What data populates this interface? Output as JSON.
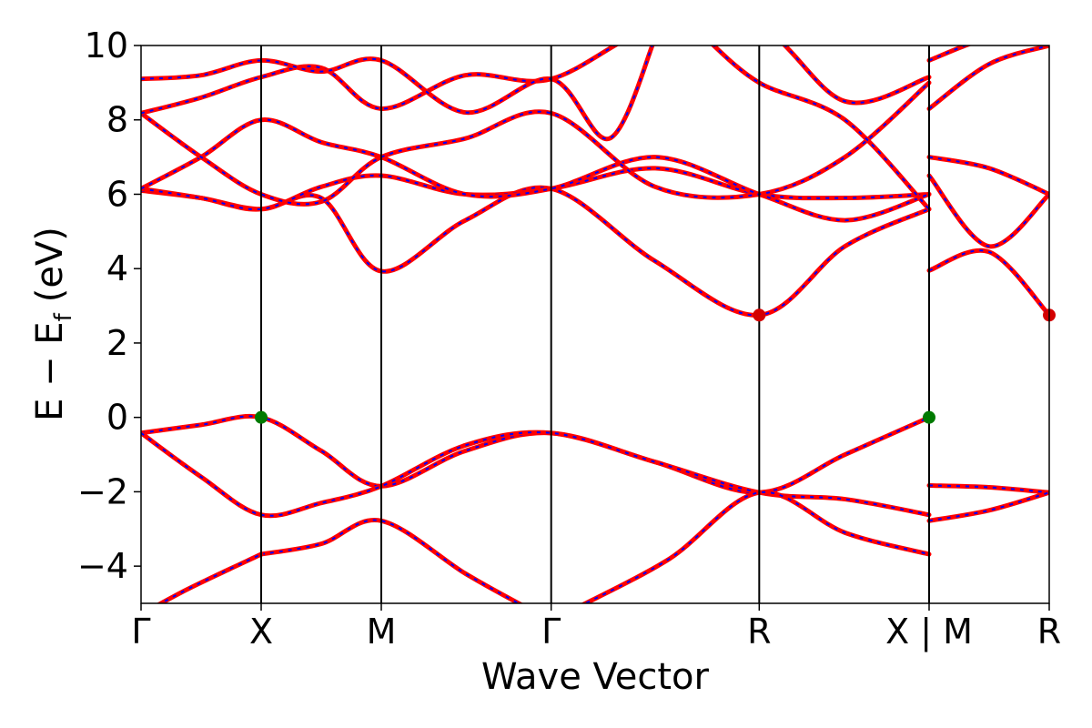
{
  "chart_data": {
    "type": "line",
    "xlabel": "Wave Vector",
    "ylabel": "E − E",
    "ylabel_sub": "f",
    "ylabel_unit": "(eV)",
    "ylim": [
      -5,
      10
    ],
    "yticks": [
      -4,
      -2,
      0,
      2,
      4,
      6,
      8,
      10
    ],
    "ytick_labels": [
      "−4",
      "−2",
      "0",
      "2",
      "4",
      "6",
      "8",
      "10"
    ],
    "kpoints": [
      {
        "label": "Γ",
        "x": 0.0
      },
      {
        "label": "X",
        "x": 0.5
      },
      {
        "label": "M",
        "x": 1.0
      },
      {
        "label": "Γ",
        "x": 1.7071
      },
      {
        "label": "R",
        "x": 2.5731
      },
      {
        "label": "X | M",
        "x": 3.2802
      },
      {
        "label": "R",
        "x": 3.7802
      }
    ],
    "xlim": [
      0,
      3.7802
    ],
    "colors": {
      "band_solid": "#ff0000",
      "band_dash": "#0000ff",
      "vbm": "#007a00",
      "cbm": "#d40000",
      "vline": "#000000"
    },
    "series": [
      {
        "segments": [
          [
            [
              0,
              -0.42
            ],
            [
              0.25,
              -0.2
            ],
            [
              0.5,
              0.0
            ],
            [
              0.75,
              -0.9
            ],
            [
              1.0,
              -1.85
            ],
            [
              1.35,
              -0.9
            ],
            [
              1.7071,
              -0.42
            ],
            [
              2.14,
              -1.2
            ],
            [
              2.5731,
              -2.02
            ],
            [
              2.93,
              -1.0
            ],
            [
              3.2802,
              0.0
            ]
          ],
          [
            [
              3.2802,
              -1.83
            ],
            [
              3.53,
              -1.88
            ],
            [
              3.7802,
              -2.02
            ]
          ]
        ]
      },
      {
        "segments": [
          [
            [
              0,
              -0.42
            ],
            [
              0.25,
              -1.6
            ],
            [
              0.5,
              -2.62
            ],
            [
              0.75,
              -2.3
            ],
            [
              1.0,
              -1.85
            ],
            [
              1.35,
              -0.75
            ],
            [
              1.7071,
              -0.42
            ],
            [
              2.14,
              -1.2
            ],
            [
              2.5731,
              -2.02
            ],
            [
              2.93,
              -2.2
            ],
            [
              3.2802,
              -2.62
            ]
          ],
          [
            [
              3.2802,
              -2.78
            ],
            [
              3.53,
              -2.5
            ],
            [
              3.7802,
              -2.02
            ]
          ]
        ]
      },
      {
        "segments": [
          [
            [
              0.5,
              -3.68
            ],
            [
              0.75,
              -3.4
            ],
            [
              1.0,
              -2.78
            ],
            [
              1.35,
              -4.2
            ],
            [
              1.6,
              -5.1
            ]
          ],
          [
            [
              1.82,
              -5.1
            ],
            [
              2.2,
              -3.8
            ],
            [
              2.5731,
              -2.02
            ],
            [
              2.93,
              -3.1
            ],
            [
              3.2802,
              -3.68
            ]
          ]
        ]
      },
      {
        "segments": [
          [
            [
              0,
              -5.3
            ],
            [
              0.2,
              -4.6
            ],
            [
              0.5,
              -3.68
            ]
          ]
        ]
      },
      {
        "segments": [
          [
            [
              0,
              6.1
            ],
            [
              0.25,
              5.9
            ],
            [
              0.5,
              5.6
            ],
            [
              0.75,
              5.9
            ],
            [
              1.0,
              3.93
            ],
            [
              1.35,
              5.3
            ],
            [
              1.7071,
              6.15
            ],
            [
              2.14,
              4.2
            ],
            [
              2.5731,
              2.75
            ],
            [
              2.93,
              4.6
            ],
            [
              3.2802,
              5.6
            ]
          ],
          [
            [
              3.2802,
              3.95
            ],
            [
              3.53,
              4.45
            ],
            [
              3.7802,
              2.75
            ]
          ]
        ]
      },
      {
        "segments": [
          [
            [
              0,
              6.15
            ],
            [
              0.25,
              5.9
            ],
            [
              0.5,
              5.6
            ],
            [
              0.75,
              6.2
            ],
            [
              1.0,
              6.5
            ],
            [
              1.35,
              6.0
            ],
            [
              1.7071,
              6.15
            ],
            [
              2.14,
              6.7
            ],
            [
              2.5731,
              6.0
            ],
            [
              2.93,
              5.9
            ],
            [
              3.2802,
              6.0
            ]
          ],
          [
            [
              3.2802,
              6.5
            ],
            [
              3.53,
              4.6
            ],
            [
              3.7802,
              6.0
            ]
          ]
        ]
      },
      {
        "segments": [
          [
            [
              0,
              6.15
            ],
            [
              0.25,
              7.0
            ],
            [
              0.5,
              8.0
            ],
            [
              0.75,
              7.4
            ],
            [
              1.0,
              7.0
            ],
            [
              1.35,
              6.0
            ],
            [
              1.7071,
              6.15
            ],
            [
              2.14,
              7.0
            ],
            [
              2.5731,
              6.0
            ],
            [
              2.93,
              5.3
            ],
            [
              3.2802,
              6.0
            ]
          ],
          [
            [
              3.2802,
              7.0
            ],
            [
              3.53,
              6.7
            ],
            [
              3.7802,
              6.0
            ]
          ]
        ]
      },
      {
        "segments": [
          [
            [
              0,
              8.18
            ],
            [
              0.25,
              7.0
            ],
            [
              0.5,
              6.0
            ],
            [
              0.75,
              5.8
            ],
            [
              1.0,
              7.0
            ],
            [
              1.35,
              7.5
            ],
            [
              1.7071,
              8.18
            ],
            [
              2.14,
              6.2
            ],
            [
              2.5731,
              6.0
            ],
            [
              2.93,
              7.0
            ],
            [
              3.2802,
              9.0
            ]
          ],
          [
            [
              3.2802,
              8.3
            ],
            [
              3.53,
              9.5
            ],
            [
              3.7802,
              10.0
            ]
          ]
        ]
      },
      {
        "segments": [
          [
            [
              0,
              8.18
            ],
            [
              0.25,
              8.6
            ],
            [
              0.5,
              9.15
            ],
            [
              0.75,
              9.4
            ],
            [
              1.0,
              8.3
            ],
            [
              1.35,
              9.2
            ],
            [
              1.7071,
              9.1
            ],
            [
              2.14,
              10.5
            ],
            [
              2.5731,
              10.5
            ],
            [
              2.93,
              8.5
            ],
            [
              3.2802,
              9.15
            ]
          ],
          [
            [
              3.2802,
              9.6
            ],
            [
              3.53,
              10.2
            ],
            [
              3.7802,
              10.3
            ]
          ]
        ]
      },
      {
        "segments": [
          [
            [
              0,
              9.1
            ],
            [
              0.25,
              9.2
            ],
            [
              0.5,
              9.6
            ],
            [
              0.75,
              9.3
            ],
            [
              1.0,
              9.6
            ],
            [
              1.35,
              8.2
            ],
            [
              1.7071,
              9.1
            ],
            [
              1.95,
              7.5
            ],
            [
              2.14,
              10.2
            ]
          ],
          [
            [
              2.35,
              10.2
            ],
            [
              2.5731,
              9.0
            ],
            [
              2.93,
              8.0
            ],
            [
              3.2802,
              5.6
            ]
          ]
        ]
      }
    ],
    "vbm": [
      {
        "x": 0.5,
        "y": 0.0
      },
      {
        "x": 3.2802,
        "y": 0.0
      }
    ],
    "cbm": [
      {
        "x": 2.5731,
        "y": 2.75
      },
      {
        "x": 3.7802,
        "y": 2.75
      }
    ],
    "grid": false,
    "legend": "none"
  }
}
